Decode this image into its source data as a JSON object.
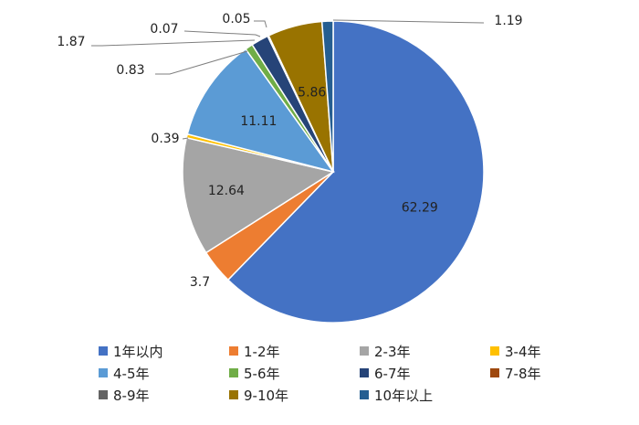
{
  "chart_data": {
    "type": "pie",
    "categories": [
      "1年以内",
      "1-2年",
      "2-3年",
      "3-4年",
      "4-5年",
      "5-6年",
      "6-7年",
      "7-8年",
      "8-9年",
      "9-10年",
      "10年以上"
    ],
    "values": [
      62.29,
      3.7,
      12.64,
      0.39,
      11.11,
      0.83,
      1.87,
      0.07,
      0.05,
      5.86,
      1.19
    ],
    "data_labels": [
      "62.29",
      "3.7",
      "12.64",
      "0.39",
      "11.11",
      "0.83",
      "1.87",
      "0.07",
      "0.05",
      "5.86",
      "1.19"
    ],
    "colors": [
      "#4472C4",
      "#ED7D31",
      "#A5A5A5",
      "#FFC000",
      "#5B9BD5",
      "#70AD47",
      "#264478",
      "#9E480E",
      "#636363",
      "#997300",
      "#255E91"
    ],
    "legend_position": "bottom",
    "title": ""
  }
}
